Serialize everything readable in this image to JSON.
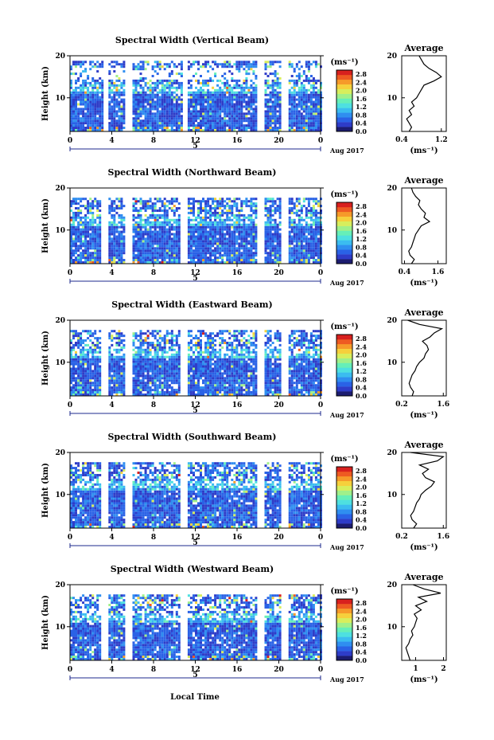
{
  "figure": {
    "xlabel": "Local Time",
    "date_label": "Aug 2017",
    "day_label": "5",
    "colorbar_unit": "(ms⁻¹)",
    "avg_title": "Average",
    "avg_unit": "(ms⁻¹)"
  },
  "colormap": [
    "#1c1c70",
    "#2e3cc8",
    "#2a62e6",
    "#2f8ef0",
    "#3bbcf0",
    "#4ee0e0",
    "#66efb8",
    "#a0f08a",
    "#d8ee5c",
    "#f6d03c",
    "#f69a2a",
    "#ee5a22",
    "#d8201e"
  ],
  "chart_data": [
    {
      "type": "heatmap",
      "title": "Spectral Width (Vertical Beam)",
      "ylabel": "Height (km)",
      "x_range": [
        0,
        24
      ],
      "y_range": [
        2,
        20
      ],
      "x_ticks": [
        "0",
        "4",
        "8",
        "12",
        "16",
        "20",
        "0"
      ],
      "y_ticks": [
        "10",
        "20"
      ],
      "data_gaps_hours": [
        [
          3.3,
          3.6
        ],
        [
          5.3,
          6.0
        ],
        [
          10.8,
          11.3
        ],
        [
          18.0,
          18.6
        ],
        [
          20.3,
          21.0
        ]
      ],
      "colorbar": {
        "min": 0.0,
        "max": 3.0,
        "ticks": [
          "0.0",
          "0.4",
          "0.8",
          "1.2",
          "1.6",
          "2.0",
          "2.4",
          "2.8"
        ]
      },
      "average": {
        "xlim": [
          0.4,
          1.3
        ],
        "x_ticks": [
          "0.4",
          "1.2"
        ],
        "y_ticks": [
          "10",
          "20"
        ],
        "heights_km": [
          2,
          3,
          4,
          5,
          6,
          7,
          8,
          9,
          10,
          11,
          12,
          13,
          14,
          15,
          16,
          17,
          18,
          19,
          20
        ],
        "values": [
          0.55,
          0.6,
          0.55,
          0.5,
          0.6,
          0.55,
          0.65,
          0.6,
          0.7,
          0.75,
          0.8,
          0.85,
          1.05,
          1.2,
          1.1,
          0.95,
          0.85,
          0.8,
          0.75
        ]
      }
    },
    {
      "type": "heatmap",
      "title": "Spectral Width (Northward Beam)",
      "ylabel": "Height (km)",
      "x_range": [
        0,
        24
      ],
      "y_range": [
        2,
        20
      ],
      "x_ticks": [
        "0",
        "4",
        "8",
        "12",
        "16",
        "20",
        "0"
      ],
      "y_ticks": [
        "10",
        "20"
      ],
      "data_gaps_hours": [
        [
          3.0,
          3.6
        ],
        [
          5.3,
          6.0
        ],
        [
          10.5,
          11.2
        ],
        [
          17.9,
          18.6
        ],
        [
          20.3,
          21.0
        ]
      ],
      "colorbar": {
        "min": 0.0,
        "max": 3.0,
        "ticks": [
          "0.0",
          "0.4",
          "0.8",
          "1.2",
          "1.6",
          "2.0",
          "2.4",
          "2.8"
        ]
      },
      "average": {
        "xlim": [
          0.3,
          1.9
        ],
        "x_ticks": [
          "0.4",
          "1.6"
        ],
        "y_ticks": [
          "10",
          "20"
        ],
        "heights_km": [
          2,
          3,
          4,
          5,
          6,
          7,
          8,
          9,
          10,
          11,
          12,
          13,
          14,
          15,
          16,
          17,
          18,
          19,
          20
        ],
        "values": [
          0.65,
          0.75,
          0.6,
          0.55,
          0.65,
          0.7,
          0.75,
          0.8,
          0.9,
          1.0,
          1.3,
          1.1,
          1.15,
          1.0,
          0.9,
          0.95,
          0.8,
          0.7,
          0.65
        ]
      }
    },
    {
      "type": "heatmap",
      "title": "Spectral Width (Eastward Beam)",
      "ylabel": "Height (km)",
      "x_range": [
        0,
        24
      ],
      "y_range": [
        2,
        20
      ],
      "x_ticks": [
        "0",
        "4",
        "8",
        "12",
        "16",
        "20",
        "0"
      ],
      "y_ticks": [
        "10",
        "20"
      ],
      "data_gaps_hours": [
        [
          3.0,
          3.6
        ],
        [
          5.3,
          6.0
        ],
        [
          10.5,
          11.2
        ],
        [
          17.9,
          18.6
        ],
        [
          20.3,
          21.0
        ]
      ],
      "colorbar": {
        "min": 0.0,
        "max": 3.0,
        "ticks": [
          "0.0",
          "0.4",
          "0.8",
          "1.2",
          "1.6",
          "2.0",
          "2.4",
          "2.8"
        ]
      },
      "average": {
        "xlim": [
          0.2,
          1.7
        ],
        "x_ticks": [
          "0.2",
          "1.6"
        ],
        "y_ticks": [
          "10",
          "20"
        ],
        "heights_km": [
          2,
          3,
          4,
          5,
          6,
          7,
          8,
          9,
          10,
          11,
          12,
          13,
          14,
          15,
          16,
          17,
          18,
          19,
          20
        ],
        "values": [
          0.55,
          0.6,
          0.5,
          0.45,
          0.5,
          0.55,
          0.65,
          0.7,
          0.8,
          0.95,
          1.0,
          1.1,
          1.05,
          0.9,
          1.15,
          1.3,
          1.55,
          0.8,
          0.4
        ]
      }
    },
    {
      "type": "heatmap",
      "title": "Spectral Width (Southward Beam)",
      "ylabel": "Height (km)",
      "x_range": [
        0,
        24
      ],
      "y_range": [
        2,
        20
      ],
      "x_ticks": [
        "0",
        "4",
        "8",
        "12",
        "16",
        "20",
        "0"
      ],
      "y_ticks": [
        "10",
        "20"
      ],
      "data_gaps_hours": [
        [
          3.0,
          3.6
        ],
        [
          5.3,
          6.0
        ],
        [
          10.5,
          11.2
        ],
        [
          17.9,
          18.6
        ],
        [
          20.3,
          21.0
        ]
      ],
      "colorbar": {
        "min": 0.0,
        "max": 3.0,
        "ticks": [
          "0.0",
          "0.4",
          "0.8",
          "1.2",
          "1.6",
          "2.0",
          "2.4",
          "2.8"
        ]
      },
      "average": {
        "xlim": [
          0.2,
          1.7
        ],
        "x_ticks": [
          "0.2",
          "1.6"
        ],
        "y_ticks": [
          "10",
          "20"
        ],
        "heights_km": [
          2,
          3,
          4,
          5,
          6,
          7,
          8,
          9,
          10,
          11,
          12,
          13,
          14,
          15,
          16,
          17,
          18,
          19,
          20
        ],
        "values": [
          0.6,
          0.7,
          0.55,
          0.5,
          0.6,
          0.65,
          0.7,
          0.8,
          0.85,
          1.0,
          1.2,
          1.3,
          1.0,
          0.9,
          1.1,
          0.8,
          1.4,
          1.6,
          0.5
        ]
      }
    },
    {
      "type": "heatmap",
      "title": "Spectral Width (Westward Beam)",
      "ylabel": "Height (km)",
      "x_range": [
        0,
        24
      ],
      "y_range": [
        2,
        20
      ],
      "x_ticks": [
        "0",
        "4",
        "8",
        "12",
        "16",
        "20",
        "0"
      ],
      "y_ticks": [
        "10",
        "20"
      ],
      "data_gaps_hours": [
        [
          3.0,
          3.6
        ],
        [
          5.3,
          6.0
        ],
        [
          10.5,
          11.2
        ],
        [
          17.9,
          18.6
        ],
        [
          20.3,
          21.0
        ]
      ],
      "colorbar": {
        "min": 0.0,
        "max": 3.0,
        "ticks": [
          "0.0",
          "0.4",
          "0.8",
          "1.2",
          "1.6",
          "2.0",
          "2.4",
          "2.8"
        ]
      },
      "average": {
        "xlim": [
          0.5,
          2.1
        ],
        "x_ticks": [
          "1",
          "2"
        ],
        "y_ticks": [
          "10",
          "20"
        ],
        "heights_km": [
          2,
          3,
          4,
          5,
          6,
          7,
          8,
          9,
          10,
          11,
          12,
          13,
          14,
          15,
          16,
          17,
          18,
          19,
          20
        ],
        "values": [
          0.8,
          0.75,
          0.7,
          0.65,
          0.75,
          0.8,
          0.9,
          0.85,
          0.95,
          1.0,
          1.05,
          0.95,
          1.2,
          1.0,
          1.4,
          1.1,
          1.9,
          1.3,
          0.9
        ]
      }
    }
  ]
}
